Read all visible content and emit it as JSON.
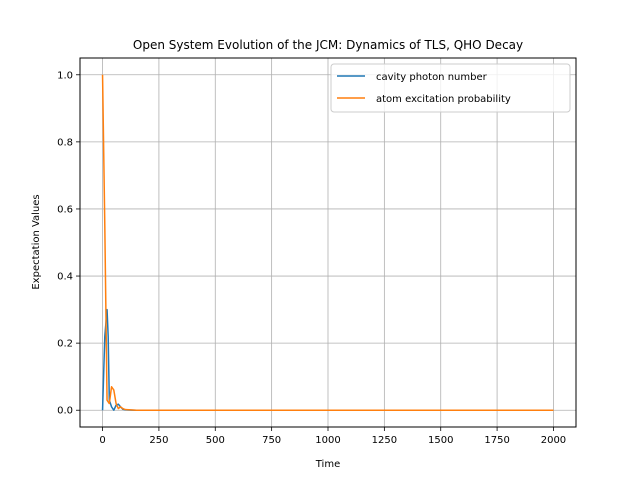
{
  "chart_data": {
    "type": "line",
    "title": "Open System Evolution of the JCM: Dynamics of TLS, QHO Decay",
    "xlabel": "Time",
    "ylabel": "Expectation Values",
    "xlim": [
      -100,
      2100
    ],
    "ylim": [
      -0.05,
      1.05
    ],
    "xticks": [
      0,
      250,
      500,
      750,
      1000,
      1250,
      1500,
      1750,
      2000
    ],
    "yticks": [
      0.0,
      0.2,
      0.4,
      0.6,
      0.8,
      1.0
    ],
    "xtick_labels": [
      "0",
      "250",
      "500",
      "750",
      "1000",
      "1250",
      "1500",
      "1750",
      "2000"
    ],
    "ytick_labels": [
      "0.0",
      "0.2",
      "0.4",
      "0.6",
      "0.8",
      "1.0"
    ],
    "grid": true,
    "legend_position": "top-right",
    "series": [
      {
        "name": "cavity photon number",
        "color": "#1f77b4",
        "x": [
          0,
          10,
          20,
          25,
          30,
          40,
          50,
          60,
          70,
          80,
          90,
          100,
          150,
          200,
          500,
          1000,
          1500,
          2000
        ],
        "y": [
          0.0,
          0.22,
          0.3,
          0.22,
          0.03,
          0.01,
          0.0,
          0.015,
          0.018,
          0.01,
          0.003,
          0.001,
          0.0,
          0.0,
          0.0,
          0.0,
          0.0,
          0.0
        ]
      },
      {
        "name": "atom excitation probability",
        "color": "#ff7f0e",
        "x": [
          0,
          10,
          20,
          30,
          40,
          50,
          60,
          70,
          80,
          90,
          100,
          150,
          200,
          500,
          1000,
          1500,
          2000
        ],
        "y": [
          1.0,
          0.55,
          0.03,
          0.02,
          0.07,
          0.06,
          0.02,
          0.005,
          0.01,
          0.005,
          0.002,
          0.0,
          0.0,
          0.0,
          0.0,
          0.0,
          0.0
        ]
      }
    ]
  }
}
